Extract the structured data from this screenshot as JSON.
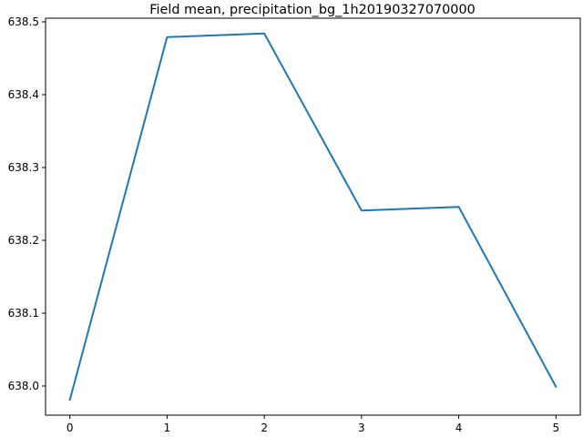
{
  "chart_data": {
    "type": "line",
    "title": "Field mean, precipitation_bg_1h20190327070000",
    "xlabel": "",
    "ylabel": "",
    "x": [
      0,
      1,
      2,
      3,
      4,
      5
    ],
    "series": [
      {
        "values": [
          637.981,
          638.479,
          638.484,
          638.241,
          638.246,
          637.999
        ]
      }
    ],
    "xlim": [
      -0.25,
      5.25
    ],
    "ylim": [
      637.96,
      638.505
    ],
    "x_ticks": [
      0,
      1,
      2,
      3,
      4,
      5
    ],
    "x_tick_labels": [
      "0",
      "1",
      "2",
      "3",
      "4",
      "5"
    ],
    "y_ticks": [
      638.0,
      638.1,
      638.2,
      638.3,
      638.4,
      638.5
    ],
    "y_tick_labels": [
      "638.0",
      "638.1",
      "638.2",
      "638.3",
      "638.4",
      "638.5"
    ],
    "grid": false,
    "line_color": "#1f77b4"
  }
}
